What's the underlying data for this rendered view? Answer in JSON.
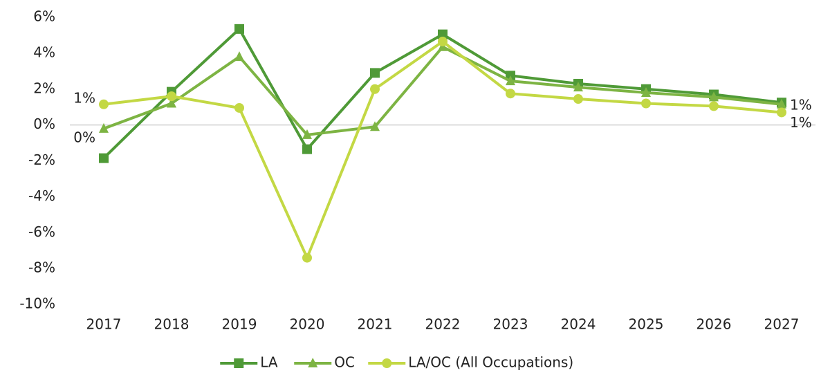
{
  "chart_data": {
    "type": "line",
    "categories": [
      "2017",
      "2018",
      "2019",
      "2020",
      "2021",
      "2022",
      "2023",
      "2024",
      "2025",
      "2026",
      "2027"
    ],
    "series": [
      {
        "name": "LA",
        "color": "#4f9a37",
        "marker": "square",
        "values": [
          -1.85,
          1.85,
          5.35,
          -1.35,
          2.9,
          5.05,
          2.75,
          2.3,
          2.0,
          1.7,
          1.25
        ]
      },
      {
        "name": "OC",
        "color": "#7db443",
        "marker": "triangle",
        "values": [
          -0.2,
          1.2,
          3.8,
          -0.55,
          -0.1,
          4.35,
          2.45,
          2.1,
          1.8,
          1.55,
          1.15
        ],
        "value_labels": [
          "0%",
          null,
          null,
          null,
          null,
          null,
          null,
          null,
          null,
          null,
          "1%"
        ]
      },
      {
        "name": "LA/OC (All Occupations)",
        "color": "#c3d844",
        "marker": "circle",
        "values": [
          1.15,
          1.6,
          0.95,
          -7.4,
          2.0,
          4.65,
          1.75,
          1.45,
          1.2,
          1.05,
          0.7
        ],
        "value_labels": [
          "1%",
          null,
          null,
          null,
          null,
          null,
          null,
          null,
          null,
          null,
          "1%"
        ]
      }
    ],
    "ylim": [
      -10,
      6
    ],
    "yticks": [
      {
        "value": 6,
        "label": "6%"
      },
      {
        "value": 4,
        "label": "4%"
      },
      {
        "value": 2,
        "label": "2%"
      },
      {
        "value": 0,
        "label": "0%"
      },
      {
        "value": -2,
        "label": "-2%"
      },
      {
        "value": -4,
        "label": "-4%"
      },
      {
        "value": -6,
        "label": "-6%"
      },
      {
        "value": -8,
        "label": "-8%"
      },
      {
        "value": -10,
        "label": "-10%"
      }
    ],
    "legend": "bottom"
  }
}
